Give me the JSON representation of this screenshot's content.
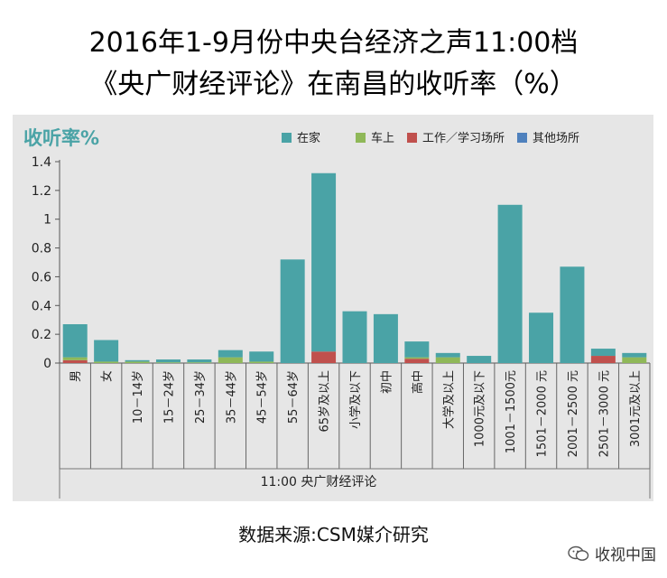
{
  "title_line1": "2016年1-9月份中央台经济之声11:00档",
  "title_line2": "《央广财经评论》在南昌的收听率（%）",
  "source": "数据来源:CSM媒介研究",
  "watermark": "收视中国",
  "colors": {
    "home": "#4aa3a6",
    "car": "#8fb858",
    "work": "#c0504d",
    "other": "#4f81bd",
    "panel": "#e6e6e6",
    "axis_title": "#4aa3a6"
  },
  "chart_data": {
    "type": "bar",
    "stacked": true,
    "ylabel": "收听率%",
    "xlabel": "11:00 央广财经评论",
    "ylim": [
      0,
      1.4
    ],
    "yticks": [
      "0",
      "0.2",
      "0.4",
      "0.6",
      "0.8",
      "1",
      "1.2",
      "1.4"
    ],
    "legend_position": "top-right",
    "categories": [
      "男",
      "女",
      "10－14岁",
      "15－24岁",
      "25－34岁",
      "35－44岁",
      "45－54岁",
      "55－64岁",
      "65岁及以上",
      "小学及以下",
      "初中",
      "高中",
      "大学及以上",
      "1000元及以下",
      "1001－1500元",
      "1501－2000 元",
      "2001－2500 元",
      "2501－3000 元",
      "3001元及以上"
    ],
    "series": [
      {
        "name": "在家",
        "key": "home",
        "values": [
          0.23,
          0.15,
          0.01,
          0.02,
          0.02,
          0.05,
          0.07,
          0.72,
          1.24,
          0.36,
          0.34,
          0.11,
          0.03,
          0.05,
          1.1,
          0.35,
          0.67,
          0.05,
          0.03
        ]
      },
      {
        "name": "车上",
        "key": "car",
        "values": [
          0.02,
          0.01,
          0.01,
          0.005,
          0.005,
          0.04,
          0.01,
          0.0,
          0.0,
          0.0,
          0.0,
          0.01,
          0.04,
          0.0,
          0.0,
          0.0,
          0.0,
          0.0,
          0.04
        ]
      },
      {
        "name": "工作／学习场所",
        "key": "work",
        "values": [
          0.02,
          0.0,
          0.0,
          0.0,
          0.0,
          0.0,
          0.0,
          0.0,
          0.08,
          0.0,
          0.0,
          0.03,
          0.0,
          0.0,
          0.0,
          0.0,
          0.0,
          0.05,
          0.0
        ]
      },
      {
        "name": "其他场所",
        "key": "other",
        "values": [
          0,
          0,
          0,
          0,
          0,
          0,
          0,
          0,
          0,
          0,
          0,
          0,
          0,
          0,
          0,
          0,
          0,
          0,
          0
        ]
      }
    ]
  }
}
